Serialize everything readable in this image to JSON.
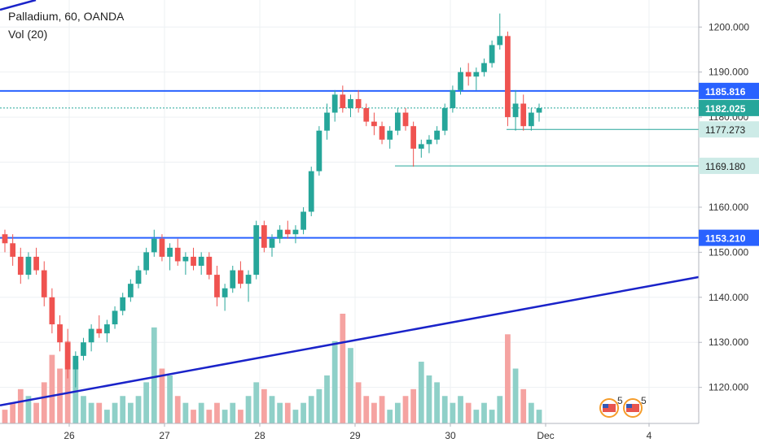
{
  "header": {
    "symbol_line": "Palladium, 60, OANDA",
    "indicator_line": "Vol (20)"
  },
  "price_axis": {
    "ticks": [
      "1200.000",
      "1190.000",
      "1180.000",
      "1170.000",
      "1160.000",
      "1150.000",
      "1140.000",
      "1130.000",
      "1120.000"
    ]
  },
  "time_axis": {
    "ticks": [
      "26",
      "27",
      "28",
      "29",
      "30",
      "Dec",
      "4"
    ]
  },
  "price_badges": [
    {
      "label": "1185.816",
      "kind": "horizontal-line",
      "color": "#2962ff"
    },
    {
      "label": "1182.025",
      "kind": "last-price",
      "color": "#26a69a"
    },
    {
      "label": "1177.273",
      "kind": "ray",
      "color": "#26a69a"
    },
    {
      "label": "1169.180",
      "kind": "ray",
      "color": "#26a69a"
    },
    {
      "label": "1153.210",
      "kind": "horizontal-line",
      "color": "#2962ff"
    }
  ],
  "event_markers": [
    {
      "icon": "us-flag-icon",
      "count": "5"
    },
    {
      "icon": "us-flag-icon",
      "count": "5"
    }
  ],
  "colors": {
    "up": "#26a69a",
    "down": "#ef5350",
    "vol_up": "#8fd0c8",
    "vol_down": "#f5a3a1",
    "line": "#2962ff",
    "trend": "#1a23c9"
  },
  "chart_data": {
    "type": "candlestick",
    "symbol": "Palladium",
    "interval": "60",
    "source": "OANDA",
    "ylim": [
      1112,
      1206
    ],
    "x_labels": [
      "26",
      "27",
      "28",
      "29",
      "30",
      "Dec",
      "4"
    ],
    "horizontal_levels": [
      1185.816,
      1153.21
    ],
    "ray_levels": [
      1177.273,
      1169.18
    ],
    "last_price": 1182.025,
    "trendline": {
      "from": 1116,
      "to": 1144.5
    },
    "candles": [
      [
        1154,
        1155,
        1150,
        1152
      ],
      [
        1152,
        1154,
        1147,
        1149
      ],
      [
        1149,
        1151,
        1143,
        1145
      ],
      [
        1145,
        1150,
        1144,
        1149
      ],
      [
        1149,
        1151,
        1145,
        1146
      ],
      [
        1146,
        1148,
        1138,
        1140
      ],
      [
        1140,
        1142,
        1132,
        1134
      ],
      [
        1134,
        1136,
        1128,
        1130
      ],
      [
        1130,
        1133,
        1122,
        1124
      ],
      [
        1124,
        1128,
        1120,
        1127
      ],
      [
        1127,
        1131,
        1126,
        1130
      ],
      [
        1130,
        1134,
        1128,
        1133
      ],
      [
        1133,
        1136,
        1131,
        1132
      ],
      [
        1132,
        1135,
        1130,
        1134
      ],
      [
        1134,
        1138,
        1133,
        1137
      ],
      [
        1137,
        1141,
        1136,
        1140
      ],
      [
        1140,
        1144,
        1139,
        1143
      ],
      [
        1143,
        1147,
        1142,
        1146
      ],
      [
        1146,
        1151,
        1145,
        1150
      ],
      [
        1150,
        1155,
        1149,
        1153
      ],
      [
        1153,
        1154,
        1148,
        1149
      ],
      [
        1149,
        1152,
        1146,
        1151
      ],
      [
        1151,
        1153,
        1147,
        1148
      ],
      [
        1148,
        1150,
        1145,
        1149
      ],
      [
        1149,
        1151,
        1146,
        1147
      ],
      [
        1147,
        1150,
        1145,
        1149
      ],
      [
        1149,
        1150,
        1144,
        1145
      ],
      [
        1145,
        1147,
        1138,
        1140
      ],
      [
        1140,
        1143,
        1137,
        1142
      ],
      [
        1142,
        1147,
        1141,
        1146
      ],
      [
        1146,
        1148,
        1142,
        1143
      ],
      [
        1143,
        1146,
        1139,
        1145
      ],
      [
        1145,
        1157,
        1144,
        1156
      ],
      [
        1156,
        1157,
        1150,
        1151
      ],
      [
        1151,
        1154,
        1149,
        1153
      ],
      [
        1153,
        1156,
        1152,
        1155
      ],
      [
        1155,
        1157,
        1153,
        1154
      ],
      [
        1154,
        1156,
        1152,
        1155
      ],
      [
        1155,
        1160,
        1154,
        1159
      ],
      [
        1159,
        1169,
        1158,
        1168
      ],
      [
        1168,
        1178,
        1167,
        1177
      ],
      [
        1177,
        1183,
        1175,
        1181
      ],
      [
        1181,
        1186,
        1179,
        1185
      ],
      [
        1185,
        1187,
        1181,
        1182
      ],
      [
        1182,
        1185,
        1180,
        1184
      ],
      [
        1184,
        1186,
        1181,
        1182
      ],
      [
        1182,
        1183,
        1178,
        1179
      ],
      [
        1179,
        1181,
        1176,
        1178
      ],
      [
        1178,
        1179,
        1174,
        1175
      ],
      [
        1175,
        1178,
        1173,
        1177
      ],
      [
        1177,
        1182,
        1176,
        1181
      ],
      [
        1181,
        1182,
        1177,
        1178
      ],
      [
        1178,
        1179,
        1169,
        1173
      ],
      [
        1173,
        1175,
        1171,
        1174
      ],
      [
        1174,
        1176,
        1172,
        1175
      ],
      [
        1175,
        1178,
        1174,
        1177
      ],
      [
        1177,
        1183,
        1176,
        1182
      ],
      [
        1182,
        1187,
        1181,
        1186
      ],
      [
        1186,
        1191,
        1185,
        1190
      ],
      [
        1190,
        1192,
        1187,
        1189
      ],
      [
        1189,
        1191,
        1186,
        1190
      ],
      [
        1190,
        1193,
        1189,
        1192
      ],
      [
        1192,
        1197,
        1191,
        1196
      ],
      [
        1196,
        1203,
        1195,
        1198
      ],
      [
        1198,
        1199,
        1178,
        1180
      ],
      [
        1180,
        1186,
        1177,
        1183
      ],
      [
        1183,
        1185,
        1177,
        1178
      ],
      [
        1178,
        1182,
        1177,
        1181
      ],
      [
        1181,
        1183,
        1179,
        1182
      ]
    ],
    "volumes": [
      2,
      3,
      5,
      4,
      3,
      6,
      10,
      8,
      12,
      9,
      4,
      3,
      3,
      2,
      3,
      4,
      3,
      4,
      6,
      14,
      8,
      7,
      4,
      3,
      2,
      3,
      2,
      3,
      2,
      3,
      2,
      4,
      6,
      5,
      4,
      3,
      3,
      2,
      3,
      4,
      5,
      7,
      12,
      16,
      11,
      6,
      4,
      3,
      4,
      2,
      3,
      4,
      5,
      9,
      7,
      6,
      4,
      3,
      4,
      3,
      2,
      3,
      2,
      4,
      13,
      8,
      5,
      3,
      2
    ]
  }
}
